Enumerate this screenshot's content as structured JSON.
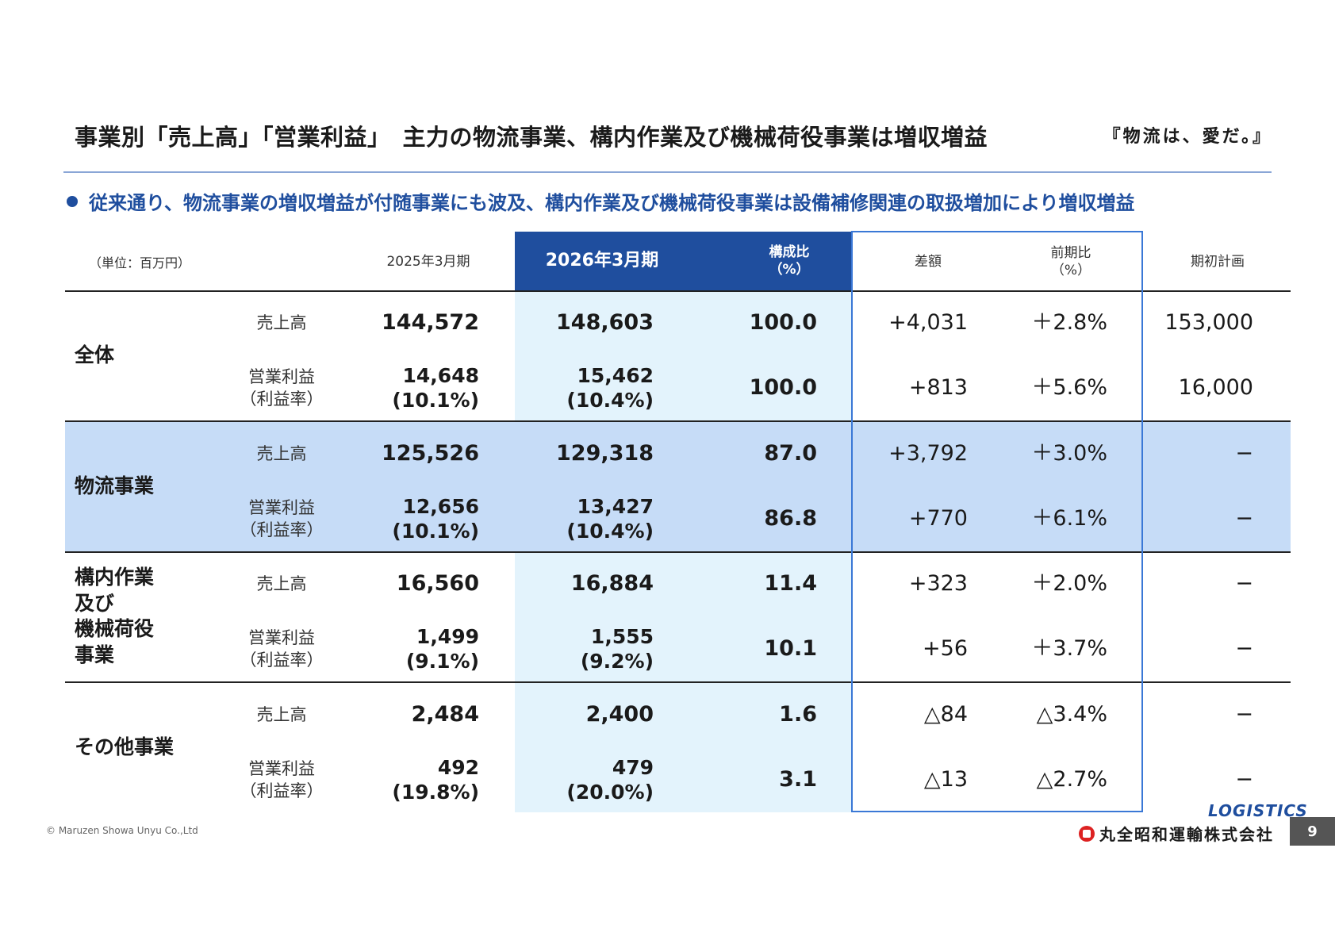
{
  "title": "事業別「売上高」「営業利益」　主力の物流事業、構内作業及び機械荷役事業は増収増益",
  "tagline": "『物流は、愛だ。』",
  "bullet": "従来通り、物流事業の増収増益が付随事業にも波及、構内作業及び機械荷役事業は設備補修関連の取扱増加により増収増益",
  "table": {
    "unit": "（単位：百万円）",
    "headers": {
      "prev": "2025年3月期",
      "curr": "2026年3月期",
      "ratio_line1": "構成比",
      "ratio_line2": "（%）",
      "diff": "差額",
      "yoy_line1": "前期比",
      "yoy_line2": "（%）",
      "plan": "期初計画"
    },
    "metric_labels": {
      "sales": "売上高",
      "op_line1": "営業利益",
      "op_line2": "（利益率）"
    },
    "rows": [
      {
        "segment": [
          "全体"
        ],
        "sales": {
          "prev": "144,572",
          "curr": "148,603",
          "ratio": "100.0",
          "diff": "+4,031",
          "yoy": "＋2.8%",
          "plan": "153,000"
        },
        "op": {
          "prev": "14,648",
          "prev_rate": "(10.1%)",
          "curr": "15,462",
          "curr_rate": "(10.4%)",
          "ratio": "100.0",
          "diff": "+813",
          "yoy": "＋5.6%",
          "plan": "16,000"
        }
      },
      {
        "segment": [
          "物流事業"
        ],
        "sales": {
          "prev": "125,526",
          "curr": "129,318",
          "ratio": "87.0",
          "diff": "+3,792",
          "yoy": "＋3.0%",
          "plan": "−"
        },
        "op": {
          "prev": "12,656",
          "prev_rate": "(10.1%)",
          "curr": "13,427",
          "curr_rate": "(10.4%)",
          "ratio": "86.8",
          "diff": "+770",
          "yoy": "＋6.1%",
          "plan": "−"
        }
      },
      {
        "segment": [
          "構内作業",
          "及び",
          "機械荷役",
          "事業"
        ],
        "sales": {
          "prev": "16,560",
          "curr": "16,884",
          "ratio": "11.4",
          "diff": "+323",
          "yoy": "＋2.0%",
          "plan": "−"
        },
        "op": {
          "prev": "1,499",
          "prev_rate": "(9.1%)",
          "curr": "1,555",
          "curr_rate": "(9.2%)",
          "ratio": "10.1",
          "diff": "+56",
          "yoy": "＋3.7%",
          "plan": "−"
        }
      },
      {
        "segment": [
          "その他事業"
        ],
        "sales": {
          "prev": "2,484",
          "curr": "2,400",
          "ratio": "1.6",
          "diff": "△84",
          "yoy": "△3.4%",
          "plan": "−"
        },
        "op": {
          "prev": "492",
          "prev_rate": "(19.8%)",
          "curr": "479",
          "curr_rate": "(20.0%)",
          "ratio": "3.1",
          "diff": "△13",
          "yoy": "△2.7%",
          "plan": "−"
        }
      }
    ]
  },
  "footer": {
    "copyright": "© Maruzen Showa Unyu Co.,Ltd",
    "logo_text": "LOGISTICS",
    "company": "丸全昭和運輸株式会社",
    "page": "9"
  },
  "colors": {
    "accent": "#1f4e9e",
    "highlight_row": "#c6dcf7",
    "highlight_col": "#e3f3fc",
    "frame": "#3a78d6"
  }
}
